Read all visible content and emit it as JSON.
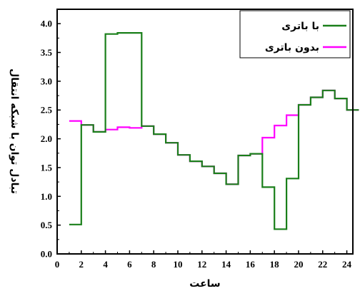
{
  "chart_data": {
    "type": "line",
    "step": true,
    "xlabel": "ساعت",
    "ylabel": "تبادل توان با شبکه انتقال",
    "xlim": [
      0,
      24.5
    ],
    "ylim": [
      0,
      4.25
    ],
    "xticks": [
      0,
      2,
      4,
      6,
      8,
      10,
      12,
      14,
      16,
      18,
      20,
      22,
      24
    ],
    "yticks": [
      0.0,
      0.5,
      1.0,
      1.5,
      2.0,
      2.5,
      3.0,
      3.5,
      4.0
    ],
    "xtick_labels": [
      "0",
      "2",
      "4",
      "6",
      "8",
      "10",
      "12",
      "14",
      "16",
      "18",
      "20",
      "22",
      "24"
    ],
    "ytick_labels": [
      "0.0",
      "0.5",
      "1.0",
      "1.5",
      "2.0",
      "2.5",
      "3.0",
      "3.5",
      "4.0"
    ],
    "x": [
      1,
      2,
      3,
      4,
      5,
      6,
      7,
      8,
      9,
      10,
      11,
      12,
      13,
      14,
      15,
      16,
      17,
      18,
      19,
      20,
      21,
      22,
      23,
      24
    ],
    "legend_position": "top-right",
    "grid": false,
    "series": [
      {
        "name": "با باتری",
        "color": "#1a7f1a",
        "values": [
          0.51,
          2.24,
          2.12,
          3.82,
          3.84,
          3.84,
          2.22,
          2.08,
          1.93,
          1.72,
          1.61,
          1.52,
          1.4,
          1.21,
          1.71,
          1.74,
          1.16,
          0.43,
          1.31,
          2.59,
          2.72,
          2.84,
          2.7,
          2.5
        ]
      },
      {
        "name": "بدون باتری",
        "color": "#ff00ff",
        "values": [
          2.31,
          2.24,
          2.12,
          2.16,
          2.2,
          2.19,
          2.22,
          2.08,
          1.93,
          1.72,
          1.61,
          1.52,
          1.4,
          1.21,
          1.71,
          1.74,
          2.02,
          2.23,
          2.41,
          2.59,
          2.72,
          2.84,
          2.7,
          2.5
        ]
      }
    ]
  }
}
